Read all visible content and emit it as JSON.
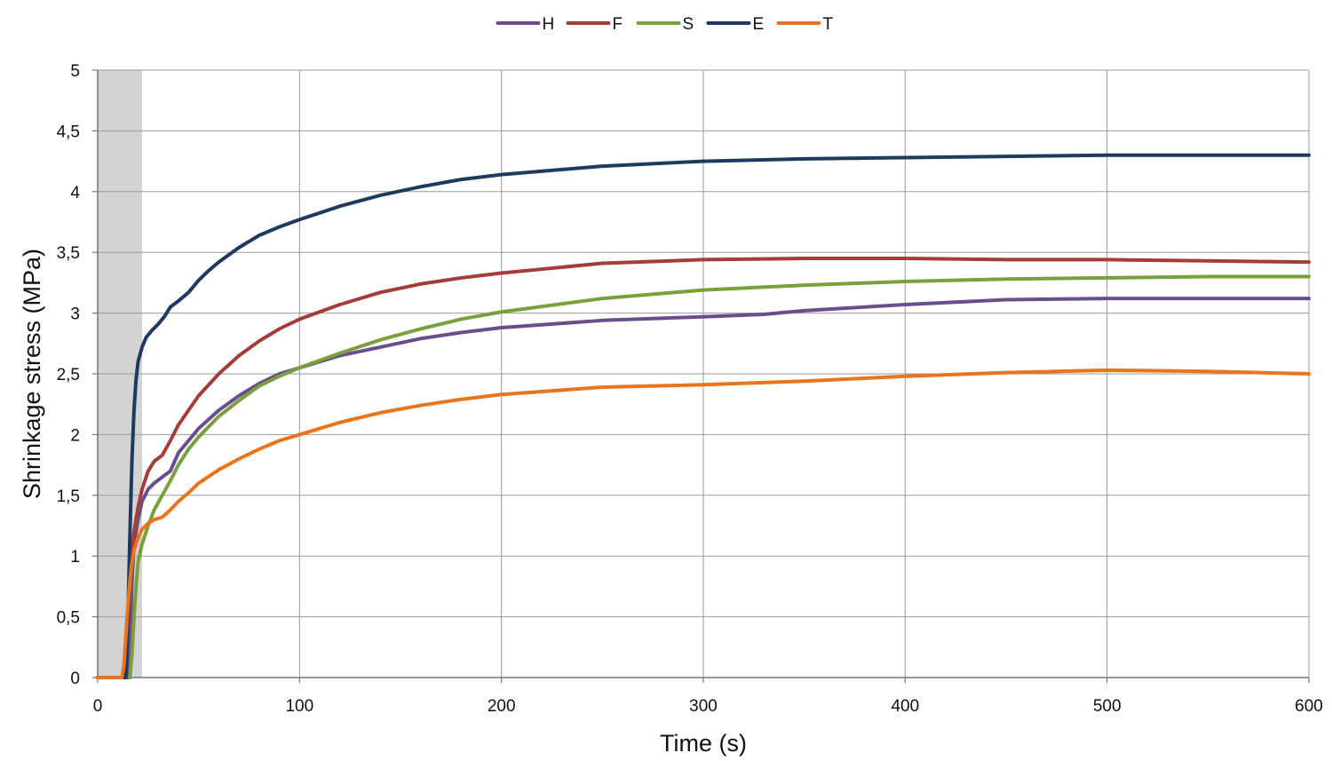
{
  "chart_data": {
    "type": "line",
    "xlabel": "Time (s)",
    "ylabel": "Shrinkage stress (MPa)",
    "xlim": [
      0,
      600
    ],
    "ylim": [
      0,
      5
    ],
    "x_ticks": [
      "0",
      "100",
      "200",
      "300",
      "400",
      "500",
      "600"
    ],
    "x_tick_values": [
      0,
      100,
      200,
      300,
      400,
      500,
      600
    ],
    "y_ticks": [
      "0",
      "0,5",
      "1",
      "1,5",
      "2",
      "2,5",
      "3",
      "3,5",
      "4",
      "4,5",
      "5"
    ],
    "y_tick_values": [
      0,
      0.5,
      1,
      1.5,
      2,
      2.5,
      3,
      3.5,
      4,
      4.5,
      5
    ],
    "grid": true,
    "legend_position": "top-center",
    "shaded_region": {
      "x_start": 0,
      "x_end": 22,
      "color": "#d3d3d3"
    },
    "series": [
      {
        "name": "H",
        "color": "#6a4e8c",
        "points": [
          [
            0,
            0
          ],
          [
            15,
            0
          ],
          [
            16,
            0.3
          ],
          [
            17,
            0.8
          ],
          [
            18,
            1.1
          ],
          [
            20,
            1.3
          ],
          [
            22,
            1.45
          ],
          [
            25,
            1.55
          ],
          [
            28,
            1.6
          ],
          [
            32,
            1.65
          ],
          [
            36,
            1.7
          ],
          [
            40,
            1.85
          ],
          [
            45,
            1.95
          ],
          [
            50,
            2.05
          ],
          [
            60,
            2.2
          ],
          [
            70,
            2.32
          ],
          [
            80,
            2.42
          ],
          [
            90,
            2.5
          ],
          [
            100,
            2.55
          ],
          [
            120,
            2.65
          ],
          [
            140,
            2.72
          ],
          [
            160,
            2.79
          ],
          [
            180,
            2.84
          ],
          [
            200,
            2.88
          ],
          [
            250,
            2.94
          ],
          [
            300,
            2.97
          ],
          [
            330,
            2.99
          ],
          [
            350,
            3.02
          ],
          [
            400,
            3.07
          ],
          [
            450,
            3.11
          ],
          [
            500,
            3.12
          ],
          [
            550,
            3.12
          ],
          [
            600,
            3.12
          ]
        ]
      },
      {
        "name": "F",
        "color": "#a23d3a",
        "points": [
          [
            0,
            0
          ],
          [
            13,
            0
          ],
          [
            14,
            0.2
          ],
          [
            15,
            0.5
          ],
          [
            16,
            0.8
          ],
          [
            17,
            1.0
          ],
          [
            18,
            1.2
          ],
          [
            20,
            1.4
          ],
          [
            22,
            1.55
          ],
          [
            25,
            1.7
          ],
          [
            28,
            1.78
          ],
          [
            32,
            1.83
          ],
          [
            36,
            1.95
          ],
          [
            40,
            2.08
          ],
          [
            45,
            2.2
          ],
          [
            50,
            2.32
          ],
          [
            60,
            2.5
          ],
          [
            70,
            2.65
          ],
          [
            80,
            2.77
          ],
          [
            90,
            2.87
          ],
          [
            100,
            2.95
          ],
          [
            120,
            3.07
          ],
          [
            140,
            3.17
          ],
          [
            160,
            3.24
          ],
          [
            180,
            3.29
          ],
          [
            200,
            3.33
          ],
          [
            250,
            3.41
          ],
          [
            300,
            3.44
          ],
          [
            350,
            3.45
          ],
          [
            400,
            3.45
          ],
          [
            450,
            3.44
          ],
          [
            500,
            3.44
          ],
          [
            550,
            3.43
          ],
          [
            600,
            3.42
          ]
        ]
      },
      {
        "name": "S",
        "color": "#78a03c",
        "points": [
          [
            0,
            0
          ],
          [
            16,
            0
          ],
          [
            17,
            0.2
          ],
          [
            18,
            0.5
          ],
          [
            19,
            0.75
          ],
          [
            20,
            0.95
          ],
          [
            22,
            1.1
          ],
          [
            25,
            1.25
          ],
          [
            28,
            1.38
          ],
          [
            32,
            1.5
          ],
          [
            36,
            1.62
          ],
          [
            40,
            1.75
          ],
          [
            45,
            1.88
          ],
          [
            50,
            1.98
          ],
          [
            60,
            2.15
          ],
          [
            70,
            2.28
          ],
          [
            80,
            2.4
          ],
          [
            90,
            2.48
          ],
          [
            100,
            2.55
          ],
          [
            120,
            2.67
          ],
          [
            140,
            2.78
          ],
          [
            160,
            2.87
          ],
          [
            180,
            2.95
          ],
          [
            200,
            3.01
          ],
          [
            250,
            3.12
          ],
          [
            300,
            3.19
          ],
          [
            350,
            3.23
          ],
          [
            400,
            3.26
          ],
          [
            450,
            3.28
          ],
          [
            500,
            3.29
          ],
          [
            550,
            3.3
          ],
          [
            600,
            3.3
          ]
        ]
      },
      {
        "name": "E",
        "color": "#1f3a5f",
        "points": [
          [
            0,
            0
          ],
          [
            14,
            0
          ],
          [
            15,
            0.5
          ],
          [
            16,
            1.2
          ],
          [
            17,
            1.8
          ],
          [
            18,
            2.2
          ],
          [
            19,
            2.45
          ],
          [
            20,
            2.6
          ],
          [
            22,
            2.72
          ],
          [
            24,
            2.8
          ],
          [
            27,
            2.86
          ],
          [
            30,
            2.91
          ],
          [
            33,
            2.97
          ],
          [
            36,
            3.05
          ],
          [
            40,
            3.1
          ],
          [
            45,
            3.17
          ],
          [
            50,
            3.27
          ],
          [
            55,
            3.35
          ],
          [
            60,
            3.42
          ],
          [
            70,
            3.54
          ],
          [
            80,
            3.64
          ],
          [
            90,
            3.71
          ],
          [
            100,
            3.77
          ],
          [
            120,
            3.88
          ],
          [
            140,
            3.97
          ],
          [
            160,
            4.04
          ],
          [
            180,
            4.1
          ],
          [
            200,
            4.14
          ],
          [
            250,
            4.21
          ],
          [
            300,
            4.25
          ],
          [
            350,
            4.27
          ],
          [
            400,
            4.28
          ],
          [
            450,
            4.29
          ],
          [
            500,
            4.3
          ],
          [
            550,
            4.3
          ],
          [
            600,
            4.3
          ]
        ]
      },
      {
        "name": "T",
        "color": "#e8741c",
        "points": [
          [
            0,
            0
          ],
          [
            12,
            0
          ],
          [
            13,
            0.1
          ],
          [
            14,
            0.35
          ],
          [
            15,
            0.6
          ],
          [
            16,
            0.8
          ],
          [
            17,
            0.95
          ],
          [
            18,
            1.05
          ],
          [
            20,
            1.15
          ],
          [
            22,
            1.22
          ],
          [
            25,
            1.27
          ],
          [
            28,
            1.3
          ],
          [
            32,
            1.32
          ],
          [
            36,
            1.38
          ],
          [
            40,
            1.45
          ],
          [
            45,
            1.52
          ],
          [
            50,
            1.6
          ],
          [
            60,
            1.71
          ],
          [
            70,
            1.8
          ],
          [
            80,
            1.88
          ],
          [
            90,
            1.95
          ],
          [
            100,
            2.0
          ],
          [
            120,
            2.1
          ],
          [
            140,
            2.18
          ],
          [
            160,
            2.24
          ],
          [
            180,
            2.29
          ],
          [
            200,
            2.33
          ],
          [
            250,
            2.39
          ],
          [
            300,
            2.41
          ],
          [
            350,
            2.44
          ],
          [
            400,
            2.48
          ],
          [
            450,
            2.51
          ],
          [
            500,
            2.53
          ],
          [
            550,
            2.52
          ],
          [
            600,
            2.5
          ]
        ]
      }
    ]
  }
}
